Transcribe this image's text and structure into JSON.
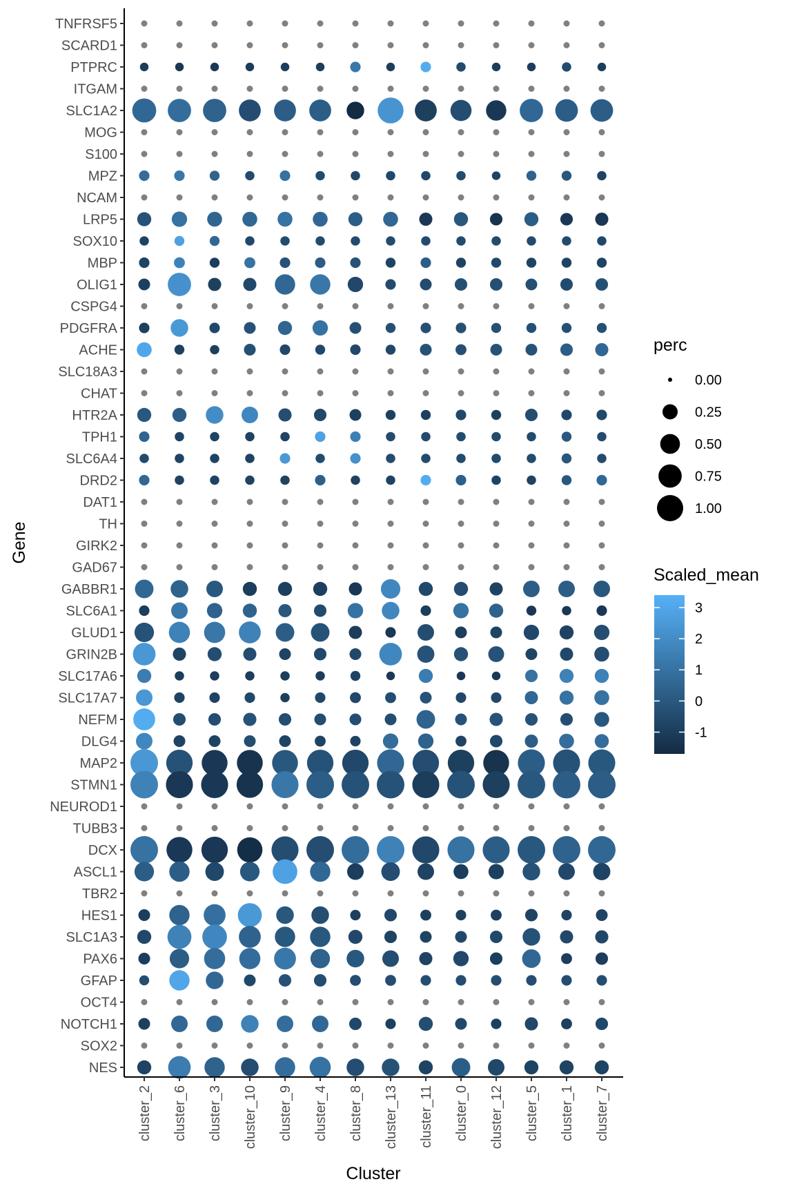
{
  "chart_data": {
    "type": "dotplot",
    "xlabel": "Cluster",
    "ylabel": "Gene",
    "clusters": [
      "cluster_2",
      "cluster_6",
      "cluster_3",
      "cluster_10",
      "cluster_9",
      "cluster_4",
      "cluster_8",
      "cluster_13",
      "cluster_11",
      "cluster_0",
      "cluster_12",
      "cluster_5",
      "cluster_1",
      "cluster_7"
    ],
    "genes": [
      "TNFRSF5",
      "SCARD1",
      "PTPRC",
      "ITGAM",
      "SLC1A2",
      "MOG",
      "S100",
      "MPZ",
      "NCAM",
      "LRP5",
      "SOX10",
      "MBP",
      "OLIG1",
      "CSPG4",
      "PDGFRA",
      "ACHE",
      "SLC18A3",
      "CHAT",
      "HTR2A",
      "TPH1",
      "SLC6A4",
      "DRD2",
      "DAT1",
      "TH",
      "GIRK2",
      "GAD67",
      "GABBR1",
      "SLC6A1",
      "GLUD1",
      "GRIN2B",
      "SLC17A6",
      "SLC17A7",
      "NEFM",
      "DLG4",
      "MAP2",
      "STMN1",
      "NEUROD1",
      "TUBB3",
      "DCX",
      "ASCL1",
      "TBR2",
      "HES1",
      "SLC1A3",
      "PAX6",
      "GFAP",
      "OCT4",
      "NOTCH1",
      "SOX2",
      "NES"
    ],
    "na_genes": [
      "TNFRSF5",
      "SCARD1",
      "ITGAM",
      "MOG",
      "S100",
      "NCAM",
      "CSPG4",
      "SLC18A3",
      "CHAT",
      "DAT1",
      "TH",
      "GIRK2",
      "GAD67",
      "NEUROD1",
      "TUBB3",
      "TBR2",
      "OCT4",
      "SOX2"
    ],
    "na_color": "#808080",
    "perc": {
      "PTPRC": [
        0.02,
        0.02,
        0.02,
        0.02,
        0.02,
        0.02,
        0.05,
        0.02,
        0.05,
        0.03,
        0.02,
        0.02,
        0.03,
        0.02
      ],
      "SLC1A2": [
        0.7,
        0.65,
        0.65,
        0.55,
        0.55,
        0.55,
        0.3,
        0.85,
        0.55,
        0.5,
        0.45,
        0.65,
        0.6,
        0.6
      ],
      "MPZ": [
        0.05,
        0.05,
        0.04,
        0.03,
        0.05,
        0.03,
        0.03,
        0.03,
        0.03,
        0.03,
        0.02,
        0.04,
        0.04,
        0.03
      ],
      "LRP5": [
        0.15,
        0.2,
        0.18,
        0.18,
        0.18,
        0.18,
        0.15,
        0.18,
        0.12,
        0.15,
        0.1,
        0.15,
        0.1,
        0.12
      ],
      "SOX10": [
        0.03,
        0.04,
        0.04,
        0.03,
        0.03,
        0.03,
        0.03,
        0.03,
        0.03,
        0.03,
        0.03,
        0.03,
        0.03,
        0.03
      ],
      "MBP": [
        0.05,
        0.06,
        0.04,
        0.06,
        0.05,
        0.05,
        0.05,
        0.04,
        0.05,
        0.04,
        0.04,
        0.04,
        0.04,
        0.04
      ],
      "OLIG1": [
        0.08,
        0.65,
        0.12,
        0.12,
        0.45,
        0.45,
        0.2,
        0.05,
        0.08,
        0.1,
        0.1,
        0.08,
        0.1,
        0.1
      ],
      "PDGFRA": [
        0.05,
        0.3,
        0.05,
        0.08,
        0.15,
        0.2,
        0.08,
        0.04,
        0.05,
        0.05,
        0.04,
        0.04,
        0.04,
        0.04
      ],
      "ACHE": [
        0.18,
        0.04,
        0.03,
        0.08,
        0.05,
        0.04,
        0.05,
        0.04,
        0.08,
        0.06,
        0.08,
        0.08,
        0.1,
        0.12
      ],
      "HTR2A": [
        0.15,
        0.15,
        0.3,
        0.25,
        0.12,
        0.1,
        0.08,
        0.04,
        0.04,
        0.05,
        0.04,
        0.1,
        0.05,
        0.05
      ],
      "TPH1": [
        0.05,
        0.03,
        0.03,
        0.03,
        0.03,
        0.05,
        0.05,
        0.03,
        0.03,
        0.03,
        0.03,
        0.03,
        0.04,
        0.03
      ],
      "SLC6A4": [
        0.03,
        0.03,
        0.03,
        0.03,
        0.05,
        0.03,
        0.05,
        0.03,
        0.03,
        0.03,
        0.03,
        0.03,
        0.04,
        0.03
      ],
      "DRD2": [
        0.05,
        0.03,
        0.03,
        0.03,
        0.03,
        0.05,
        0.03,
        0.03,
        0.05,
        0.05,
        0.03,
        0.03,
        0.04,
        0.05
      ],
      "GABBR1": [
        0.35,
        0.3,
        0.25,
        0.15,
        0.15,
        0.15,
        0.12,
        0.4,
        0.15,
        0.15,
        0.12,
        0.25,
        0.25,
        0.25
      ],
      "SLC6A1": [
        0.05,
        0.25,
        0.2,
        0.15,
        0.12,
        0.1,
        0.2,
        0.3,
        0.05,
        0.2,
        0.15,
        0.04,
        0.03,
        0.05
      ],
      "GLUD1": [
        0.4,
        0.5,
        0.5,
        0.55,
        0.35,
        0.35,
        0.12,
        0.05,
        0.25,
        0.08,
        0.08,
        0.2,
        0.15,
        0.2
      ],
      "GRIN2B": [
        0.6,
        0.12,
        0.15,
        0.12,
        0.08,
        0.1,
        0.08,
        0.6,
        0.28,
        0.15,
        0.22,
        0.08,
        0.12,
        0.18
      ],
      "SLC17A6": [
        0.15,
        0.03,
        0.03,
        0.03,
        0.03,
        0.03,
        0.04,
        0.02,
        0.15,
        0.02,
        0.02,
        0.1,
        0.15,
        0.15
      ],
      "SLC17A7": [
        0.25,
        0.05,
        0.05,
        0.05,
        0.03,
        0.05,
        0.06,
        0.06,
        0.08,
        0.05,
        0.05,
        0.12,
        0.15,
        0.18
      ],
      "NEFM": [
        0.55,
        0.1,
        0.1,
        0.12,
        0.1,
        0.08,
        0.08,
        0.08,
        0.35,
        0.08,
        0.12,
        0.1,
        0.1,
        0.18
      ],
      "DLG4": [
        0.25,
        0.08,
        0.08,
        0.08,
        0.08,
        0.06,
        0.05,
        0.2,
        0.2,
        0.06,
        0.1,
        0.12,
        0.18,
        0.15
      ],
      "MAP2": [
        1.0,
        0.9,
        0.85,
        0.85,
        0.85,
        0.9,
        0.9,
        0.95,
        0.9,
        0.9,
        0.85,
        0.95,
        0.95,
        0.95
      ],
      "STMN1": [
        1.0,
        0.95,
        0.95,
        0.9,
        0.95,
        1.0,
        1.0,
        1.0,
        0.95,
        1.0,
        0.95,
        1.0,
        1.0,
        1.0
      ],
      "DCX": [
        1.0,
        0.85,
        0.9,
        0.8,
        0.95,
        1.0,
        1.0,
        1.0,
        0.95,
        0.95,
        0.95,
        1.0,
        1.0,
        1.0
      ],
      "ASCL1": [
        0.4,
        0.45,
        0.35,
        0.4,
        0.75,
        0.45,
        0.25,
        0.35,
        0.25,
        0.18,
        0.2,
        0.3,
        0.25,
        0.28
      ],
      "HES1": [
        0.08,
        0.45,
        0.55,
        0.7,
        0.3,
        0.3,
        0.05,
        0.1,
        0.06,
        0.05,
        0.06,
        0.1,
        0.05,
        0.08
      ],
      "SLC1A3": [
        0.15,
        0.7,
        0.75,
        0.55,
        0.45,
        0.45,
        0.15,
        0.1,
        0.08,
        0.08,
        0.1,
        0.3,
        0.12,
        0.12
      ],
      "PAX6": [
        0.08,
        0.4,
        0.5,
        0.5,
        0.55,
        0.4,
        0.3,
        0.25,
        0.12,
        0.2,
        0.1,
        0.35,
        0.06,
        0.1
      ],
      "GFAP": [
        0.04,
        0.45,
        0.3,
        0.08,
        0.1,
        0.1,
        0.06,
        0.06,
        0.05,
        0.05,
        0.05,
        0.05,
        0.05,
        0.05
      ],
      "NOTCH1": [
        0.08,
        0.25,
        0.25,
        0.3,
        0.25,
        0.25,
        0.1,
        0.05,
        0.15,
        0.08,
        0.05,
        0.12,
        0.06,
        0.1
      ],
      "NES": [
        0.15,
        0.6,
        0.45,
        0.3,
        0.45,
        0.5,
        0.3,
        0.3,
        0.15,
        0.35,
        0.25,
        0.15,
        0.15,
        0.15
      ]
    },
    "scaled_mean": {
      "PTPRC": [
        -1.0,
        -1.2,
        -1.2,
        -1.0,
        -1.0,
        -1.0,
        1.2,
        -1.0,
        3.2,
        -0.5,
        -1.0,
        -1.0,
        -0.5,
        -1.0
      ],
      "SLC1A2": [
        0.6,
        0.8,
        0.4,
        -0.4,
        0.2,
        0.2,
        -1.7,
        2.3,
        -0.9,
        -0.4,
        -1.2,
        0.6,
        0.2,
        0.2
      ],
      "MPZ": [
        0.8,
        1.2,
        0.4,
        -0.5,
        1.0,
        -0.5,
        -0.6,
        -0.6,
        -0.6,
        -0.5,
        -0.8,
        0.4,
        0.0,
        -0.8
      ],
      "LRP5": [
        -0.2,
        1.0,
        0.5,
        0.6,
        1.0,
        0.6,
        0.2,
        0.6,
        -1.2,
        0.0,
        -1.4,
        0.2,
        -1.2,
        -1.2
      ],
      "SOX10": [
        -0.8,
        2.8,
        0.6,
        -0.6,
        -0.5,
        -0.5,
        -0.5,
        -0.5,
        -0.5,
        -0.5,
        -0.5,
        -0.5,
        -0.5,
        -0.6
      ],
      "MBP": [
        -0.8,
        1.6,
        -1.0,
        1.0,
        -0.2,
        0.2,
        -0.2,
        -0.8,
        0.2,
        -0.8,
        -0.6,
        -0.8,
        -0.8,
        -0.8
      ],
      "OLIG1": [
        -0.9,
        2.2,
        -0.9,
        -0.6,
        0.6,
        1.2,
        -0.6,
        -0.5,
        -0.5,
        -0.3,
        -0.3,
        -0.3,
        -0.5,
        -0.3
      ],
      "PDGFRA": [
        -0.9,
        2.5,
        -0.6,
        -0.2,
        0.5,
        1.0,
        -0.3,
        -0.3,
        -0.3,
        -0.3,
        -0.3,
        -0.3,
        -0.3,
        -0.3
      ],
      "ACHE": [
        3.0,
        -0.9,
        -0.9,
        -0.3,
        -0.6,
        -0.6,
        -0.6,
        -0.6,
        -0.2,
        -0.3,
        -0.2,
        -0.2,
        0.2,
        0.6
      ],
      "HTR2A": [
        0.0,
        0.2,
        2.0,
        1.8,
        -0.4,
        -0.6,
        -0.9,
        -0.9,
        -0.9,
        -0.6,
        -0.9,
        -0.4,
        -0.6,
        -0.6
      ],
      "TPH1": [
        0.5,
        -0.8,
        -0.8,
        -0.8,
        -0.8,
        2.8,
        1.5,
        -0.5,
        -0.5,
        -0.5,
        -0.5,
        -0.5,
        0.0,
        -0.5
      ],
      "SLC6A4": [
        -0.5,
        -0.8,
        -0.8,
        -0.8,
        2.5,
        -0.5,
        2.2,
        -0.5,
        -0.5,
        -0.5,
        -0.5,
        -0.5,
        0.0,
        -0.5
      ],
      "DRD2": [
        0.6,
        -0.8,
        -0.8,
        -0.8,
        -0.8,
        0.3,
        -0.8,
        -0.8,
        3.2,
        0.3,
        -0.8,
        -0.8,
        0.0,
        0.6
      ],
      "GABBR1": [
        0.6,
        0.4,
        0.0,
        -1.0,
        -0.9,
        -0.9,
        -1.2,
        1.8,
        -0.6,
        -0.4,
        -0.8,
        0.2,
        0.2,
        0.0
      ],
      "SLC6A1": [
        -1.0,
        1.2,
        0.4,
        0.4,
        0.0,
        -0.5,
        1.0,
        1.8,
        -1.0,
        1.0,
        0.4,
        -1.2,
        -1.2,
        -1.2
      ],
      "GLUD1": [
        -0.2,
        1.6,
        1.2,
        1.6,
        0.2,
        -0.2,
        -1.0,
        -1.2,
        -0.4,
        -1.0,
        -0.8,
        -0.6,
        -0.8,
        -0.4
      ],
      "GRIN2B": [
        2.4,
        -0.8,
        -0.4,
        -0.4,
        -0.8,
        -0.6,
        -0.6,
        1.8,
        -0.2,
        -0.2,
        -0.2,
        -0.8,
        -0.6,
        -0.4
      ],
      "SLC17A6": [
        1.4,
        -1.0,
        -1.0,
        -1.0,
        -1.0,
        -1.0,
        -0.8,
        -1.2,
        1.4,
        -1.2,
        -1.2,
        1.0,
        1.6,
        1.6
      ],
      "SLC17A7": [
        2.4,
        -0.8,
        -0.8,
        -0.6,
        -0.9,
        -0.6,
        -0.6,
        -0.4,
        -0.2,
        -0.6,
        -0.6,
        0.6,
        1.0,
        1.0
      ],
      "NEFM": [
        3.2,
        -0.4,
        -0.4,
        -0.2,
        -0.4,
        -0.4,
        -0.4,
        -0.4,
        0.4,
        -0.2,
        -0.2,
        -0.2,
        -0.4,
        0.0
      ],
      "DLG4": [
        1.8,
        -0.8,
        -0.8,
        -0.4,
        -0.8,
        -0.8,
        -0.8,
        0.8,
        0.4,
        -0.8,
        -0.6,
        0.2,
        0.8,
        0.8
      ],
      "MAP2": [
        2.4,
        -0.2,
        -1.2,
        -1.4,
        0.0,
        -0.2,
        -0.6,
        0.6,
        -0.4,
        -0.9,
        -1.4,
        0.2,
        -0.2,
        0.0
      ],
      "STMN1": [
        1.6,
        -1.2,
        -1.2,
        -1.4,
        1.2,
        0.2,
        -0.2,
        -0.2,
        -1.0,
        -0.2,
        -0.9,
        0.0,
        0.2,
        0.2
      ],
      "DCX": [
        1.0,
        -1.2,
        -1.2,
        -1.6,
        -0.4,
        -0.4,
        0.8,
        1.6,
        -0.6,
        1.0,
        0.2,
        0.0,
        0.4,
        0.6
      ],
      "ASCL1": [
        0.2,
        0.2,
        -0.6,
        0.0,
        2.8,
        0.6,
        -1.0,
        -0.4,
        -0.8,
        -1.0,
        -0.9,
        -0.2,
        -0.6,
        -0.8
      ],
      "HES1": [
        -1.0,
        0.4,
        0.9,
        2.5,
        0.0,
        -0.4,
        -0.9,
        -0.6,
        -0.9,
        -0.9,
        -0.9,
        -0.8,
        -0.8,
        -0.8
      ],
      "SLC1A3": [
        -0.6,
        1.6,
        1.8,
        0.4,
        0.0,
        0.0,
        -0.6,
        -0.8,
        -0.8,
        -0.6,
        -0.6,
        -0.2,
        -0.6,
        -0.6
      ],
      "PAX6": [
        -1.0,
        0.2,
        0.8,
        0.8,
        1.2,
        0.4,
        0.0,
        -0.4,
        -0.8,
        -0.6,
        -1.0,
        0.6,
        -1.0,
        -1.0
      ],
      "GFAP": [
        -0.4,
        3.0,
        0.6,
        -0.6,
        -0.2,
        -0.4,
        -0.4,
        -0.4,
        -0.4,
        -0.4,
        -0.4,
        -0.4,
        -0.4,
        -0.4
      ],
      "NOTCH1": [
        -0.9,
        0.6,
        0.6,
        1.6,
        0.8,
        0.6,
        -0.6,
        -0.9,
        -0.4,
        -0.6,
        -0.9,
        -0.6,
        -0.9,
        -0.6
      ],
      "NES": [
        -0.8,
        1.4,
        0.4,
        -0.4,
        0.8,
        1.0,
        -0.4,
        -0.2,
        -0.8,
        0.2,
        -0.6,
        -0.8,
        -0.8,
        -0.8
      ]
    },
    "color_scale": {
      "low": "#132B43",
      "high": "#56B1F7",
      "domain": [
        -1.7,
        3.4
      ]
    },
    "legends": [
      {
        "title": "perc",
        "type": "size",
        "values": [
          0.0,
          0.25,
          0.5,
          0.75,
          1.0
        ],
        "labels": [
          "0.00",
          "0.25",
          "0.50",
          "0.75",
          "1.00"
        ]
      },
      {
        "title": "Scaled_mean",
        "type": "colorbar",
        "ticks": [
          3,
          2,
          1,
          0,
          -1
        ],
        "labels": [
          "3",
          "2",
          "1",
          "0",
          "-1"
        ]
      }
    ]
  }
}
